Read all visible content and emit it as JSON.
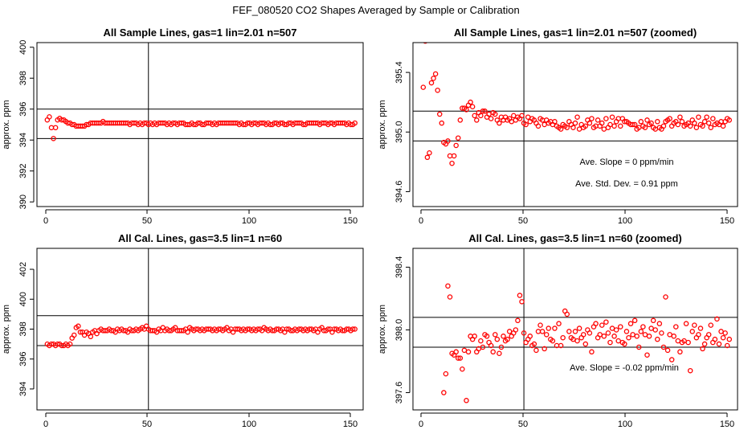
{
  "title": "FEF_080520  CO2 Shapes Averaged by Sample or Calibration",
  "chart_data": [
    {
      "type": "scatter",
      "title": "All Sample Lines, gas=1 lin=2.01 n=507",
      "ylabel": "approx. ppm",
      "xlim": [
        -4,
        154
      ],
      "ylim": [
        389.7,
        400.3
      ],
      "xticks": [
        "0",
        "50",
        "100",
        "150"
      ],
      "yticks": [
        "390",
        "392",
        "394",
        "396",
        "398",
        "400"
      ],
      "vline": 50,
      "hlines": [
        394.1,
        396.0
      ],
      "color": "#ff0000",
      "series": [
        {
          "x_start": 1,
          "x_step": 1,
          "values": [
            395.3,
            395.5,
            394.8,
            394.1,
            394.8,
            395.3,
            395.4,
            395.3,
            395.3,
            395.2,
            395.1,
            395.1,
            395.0,
            395.0,
            394.9,
            394.9,
            394.9,
            394.9,
            394.9,
            395.0,
            395.0,
            395.1,
            395.1,
            395.1,
            395.1,
            395.1,
            395.1,
            395.2,
            395.1,
            395.1,
            395.1,
            395.1,
            395.1,
            395.1,
            395.1,
            395.1,
            395.1,
            395.1,
            395.1,
            395.1,
            395.0,
            395.1,
            395.1,
            395.1,
            395.0,
            395.1,
            395.0,
            395.1,
            395.1,
            395.0,
            395.1,
            395.0,
            395.1,
            395.0,
            395.1,
            395.1,
            395.1,
            395.1,
            395.0,
            395.1,
            395.0,
            395.1,
            395.1,
            395.0,
            395.1,
            395.1,
            395.1,
            395.0,
            395.0,
            395.0,
            395.1,
            395.0,
            395.0,
            395.1,
            395.1,
            395.0,
            395.0,
            395.1,
            395.1,
            395.1,
            395.0,
            395.1,
            395.0,
            395.1,
            395.1,
            395.1,
            395.1,
            395.1,
            395.1,
            395.1,
            395.1,
            395.1,
            395.1,
            395.0,
            395.1,
            395.0,
            395.0,
            395.1,
            395.1,
            395.0,
            395.1,
            395.1,
            395.0,
            395.1,
            395.1,
            395.1,
            395.0,
            395.1,
            395.0,
            395.0,
            395.1,
            395.1,
            395.0,
            395.1,
            395.1,
            395.0,
            395.0,
            395.1,
            395.1,
            395.0,
            395.1,
            395.1,
            395.1,
            395.1,
            395.0,
            395.0,
            395.1,
            395.1,
            395.1,
            395.1,
            395.1,
            395.1,
            395.0,
            395.1,
            395.1,
            395.1,
            395.0,
            395.1,
            395.1,
            395.0,
            395.1,
            395.1,
            395.1,
            395.1,
            395.1,
            395.0,
            395.1,
            395.0,
            395.0,
            395.1
          ]
        }
      ]
    },
    {
      "type": "scatter",
      "title": "All Sample Lines, gas=1 lin=2.01 n=507 (zoomed)",
      "ylabel": "approx. ppm",
      "xlim": [
        -4,
        154
      ],
      "ylim": [
        394.5,
        395.6
      ],
      "xticks": [
        "0",
        "50",
        "100",
        "150"
      ],
      "yticks": [
        "394.6",
        "395.0",
        "395.4"
      ],
      "vline": 50,
      "hlines": [
        394.94,
        395.14
      ],
      "color": "#ff0000",
      "annotations": [
        "Ave. Slope =  0  ppm/min",
        "Ave. Std. Dev. =  0.91  ppm"
      ],
      "series": [
        {
          "x_start": 1,
          "x_step": 1,
          "values": [
            395.3,
            395.61,
            394.83,
            394.86,
            395.33,
            395.36,
            395.39,
            395.28,
            395.12,
            395.06,
            394.93,
            394.92,
            394.94,
            394.84,
            394.79,
            394.84,
            394.91,
            394.96,
            395.08,
            395.16,
            395.16,
            395.15,
            395.18,
            395.2,
            395.17,
            395.11,
            395.08,
            395.13,
            395.11,
            395.14,
            395.14,
            395.1,
            395.12,
            395.09,
            395.13,
            395.12,
            395.08,
            395.06,
            395.1,
            395.08,
            395.1,
            395.08,
            395.09,
            395.07,
            395.11,
            395.08,
            395.1,
            395.09,
            395.11,
            395.06,
            395.05,
            395.1,
            395.07,
            395.09,
            395.08,
            395.06,
            395.04,
            395.09,
            395.08,
            395.05,
            395.08,
            395.06,
            395.07,
            395.05,
            395.07,
            395.04,
            395.03,
            395.02,
            395.05,
            395.04,
            395.03,
            395.07,
            395.05,
            395.03,
            395.06,
            395.1,
            395.02,
            395.05,
            395.03,
            395.04,
            395.08,
            395.06,
            395.09,
            395.03,
            395.04,
            395.08,
            395.04,
            395.06,
            395.02,
            395.09,
            395.03,
            395.05,
            395.1,
            395.04,
            395.07,
            395.09,
            395.04,
            395.09,
            395.07,
            395.07,
            395.06,
            395.05,
            395.05,
            395.05,
            395.02,
            395.03,
            395.07,
            395.04,
            395.03,
            395.08,
            395.05,
            395.06,
            395.03,
            395.02,
            395.07,
            395.03,
            395.02,
            395.04,
            395.07,
            395.08,
            395.09,
            395.04,
            395.06,
            395.07,
            395.05,
            395.1,
            395.07,
            395.04,
            395.05,
            395.06,
            395.04,
            395.08,
            395.06,
            395.03,
            395.1,
            395.05,
            395.04,
            395.07,
            395.1,
            395.06,
            395.03,
            395.09,
            395.05,
            395.06,
            395.05,
            395.07,
            395.04,
            395.07,
            395.09,
            395.08
          ]
        }
      ]
    },
    {
      "type": "scatter",
      "title": "All Cal. Lines, gas=3.5 lin=1 n=60",
      "ylabel": "approx. ppm",
      "xlim": [
        -4,
        154
      ],
      "ylim": [
        392.6,
        403.4
      ],
      "xticks": [
        "0",
        "50",
        "100",
        "150"
      ],
      "yticks": [
        "394",
        "396",
        "398",
        "400",
        "402"
      ],
      "vline": 50,
      "hlines": [
        396.9,
        398.9
      ],
      "color": "#ff0000",
      "series": [
        {
          "x_start": 1,
          "x_step": 1,
          "values": [
            397.0,
            396.9,
            397.0,
            397.0,
            396.9,
            397.0,
            397.0,
            396.9,
            396.9,
            397.0,
            396.9,
            397.0,
            397.4,
            397.6,
            398.1,
            398.2,
            397.8,
            397.8,
            397.6,
            397.8,
            397.7,
            397.5,
            397.8,
            397.9,
            397.7,
            397.9,
            398.0,
            397.9,
            397.9,
            397.9,
            398.0,
            397.9,
            397.9,
            397.8,
            398.0,
            397.9,
            398.0,
            397.9,
            397.9,
            397.8,
            398.0,
            397.9,
            397.9,
            398.0,
            397.9,
            398.0,
            398.1,
            398.0,
            398.2,
            398.0,
            397.9,
            397.9,
            397.9,
            397.8,
            398.0,
            397.9,
            398.1,
            397.9,
            398.0,
            397.9,
            397.9,
            398.0,
            398.1,
            397.9,
            397.9,
            397.9,
            397.9,
            398.0,
            397.8,
            398.1,
            398.0,
            397.9,
            398.0,
            398.0,
            397.9,
            398.0,
            397.9,
            398.0,
            398.0,
            398.0,
            397.9,
            398.0,
            397.9,
            398.0,
            398.0,
            397.9,
            398.0,
            398.1,
            397.9,
            398.0,
            397.8,
            398.0,
            398.0,
            398.0,
            397.9,
            398.0,
            397.9,
            398.0,
            398.0,
            397.9,
            398.0,
            397.9,
            398.0,
            398.0,
            397.9,
            398.1,
            398.0,
            397.9,
            398.0,
            397.9,
            397.9,
            398.0,
            398.0,
            397.9,
            398.0,
            397.8,
            398.0,
            398.0,
            397.9,
            397.9,
            398.0,
            397.9,
            398.0,
            398.0,
            397.9,
            398.0,
            397.9,
            398.0,
            398.0,
            397.9,
            398.0,
            397.8,
            398.0,
            398.1,
            397.9,
            397.9,
            398.0,
            398.0,
            397.8,
            398.0,
            398.0,
            397.9,
            398.0,
            397.9,
            397.9,
            398.0,
            398.0,
            397.9,
            398.0,
            398.0
          ]
        }
      ]
    },
    {
      "type": "scatter",
      "title": "All Cal. Lines, gas=3.5 lin=1 n=60 (zoomed)",
      "ylabel": "approx. ppm",
      "xlim": [
        -4,
        154
      ],
      "ylim": [
        397.49,
        398.52
      ],
      "xticks": [
        "0",
        "50",
        "100",
        "150"
      ],
      "yticks": [
        "397.6",
        "398.0",
        "398.4"
      ],
      "vline": 50,
      "hlines": [
        397.89,
        398.08
      ],
      "color": "#ff0000",
      "annotations": [
        "Ave. Slope =  -0.02  ppm/min"
      ],
      "series": [
        {
          "x_start": 11,
          "x_step": 1,
          "values": [
            397.6,
            397.72,
            398.28,
            398.21,
            397.85,
            397.84,
            397.86,
            397.82,
            397.82,
            397.75,
            397.87,
            397.55,
            397.86,
            397.96,
            397.94,
            397.96,
            397.86,
            397.88,
            397.93,
            397.89,
            397.97,
            397.96,
            397.92,
            397.9,
            397.86,
            397.97,
            397.94,
            397.85,
            397.89,
            397.96,
            397.93,
            397.94,
            397.99,
            397.96,
            397.98,
            398.0,
            398.06,
            398.22,
            398.18,
            397.98,
            397.92,
            397.94,
            397.96,
            397.9,
            397.91,
            397.87,
            397.99,
            398.03,
            397.99,
            397.88,
            397.97,
            398.01,
            397.94,
            397.93,
            398.01,
            397.9,
            398.04,
            397.9,
            397.95,
            398.12,
            398.1,
            397.99,
            397.95,
            397.94,
            397.99,
            397.93,
            398.01,
            397.95,
            397.97,
            397.91,
            398.0,
            397.98,
            397.86,
            398.02,
            398.04,
            397.95,
            397.97,
            398.03,
            397.96,
            398.05,
            397.98,
            397.92,
            398.01,
            397.96,
            398.0,
            397.93,
            398.02,
            397.92,
            397.91,
            397.99,
            397.95,
            398.04,
            397.97,
            398.06,
            397.96,
            397.89,
            397.99,
            398.02,
            397.97,
            397.84,
            397.96,
            398.01,
            398.06,
            398.0,
            397.94,
            398.04,
            397.98,
            397.89,
            398.21,
            397.87,
            397.97,
            397.81,
            397.96,
            398.02,
            397.93,
            397.86,
            397.92,
            397.93,
            398.04,
            397.92,
            397.74,
            397.99,
            398.03,
            397.95,
            397.97,
            398.01,
            397.88,
            397.91,
            397.95,
            397.97,
            398.03,
            397.92,
            397.94,
            398.07,
            397.91,
            397.99,
            397.95,
            397.98,
            397.9,
            397.94
          ]
        }
      ]
    }
  ]
}
